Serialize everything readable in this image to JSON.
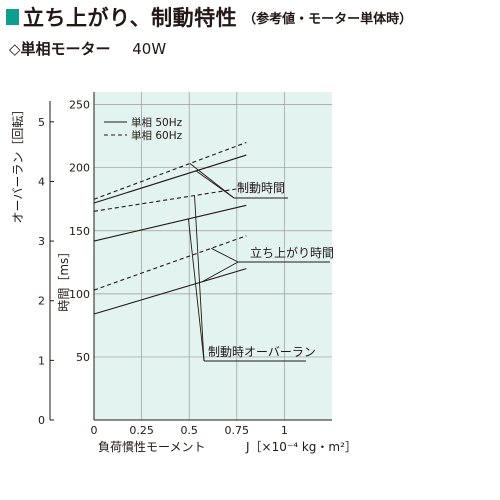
{
  "header": {
    "title": "立ち上がり、制動特性",
    "note": "（参考値・モーター単体時）",
    "subtitle_model": "◇単相モーター",
    "subtitle_power": "40W"
  },
  "colors": {
    "plot_bg": "#e3f3ef",
    "accent": "#0e9e8f",
    "line": "#231815"
  },
  "chart_data": {
    "type": "line",
    "x": [
      0.0,
      0.8
    ],
    "xticks": [
      0,
      0.25,
      0.5,
      0.75,
      1
    ],
    "xtick_labels": [
      "0",
      "0.25",
      "0.5",
      "0.75",
      "1"
    ],
    "xlim": [
      0,
      1.25
    ],
    "xlabel_left": "負荷慣性モーメント",
    "xlabel_right": "J［×10⁻⁴ kg・m²］",
    "y_ms_ticks": [
      50,
      100,
      150,
      200,
      250
    ],
    "y_ms_label": "時間［ms］",
    "ylim_ms": [
      0,
      260
    ],
    "y_rev_ticks": [
      0,
      1,
      2,
      3,
      4,
      5
    ],
    "y_rev_label": "オーバーラン［回転］",
    "ylim_rev": [
      0,
      5.5
    ],
    "grid": true,
    "legend_position": "top-left",
    "legend": [
      {
        "label": "単相 50Hz",
        "style": "solid"
      },
      {
        "label": "単相 60Hz",
        "style": "dashed"
      }
    ],
    "series": [
      {
        "name": "単相 50Hz",
        "group": "制動時間",
        "axis": "ms",
        "values": [
          172,
          210
        ]
      },
      {
        "name": "単相 60Hz",
        "group": "制動時間",
        "axis": "ms",
        "values": [
          175,
          220
        ]
      },
      {
        "name": "単相 50Hz",
        "group": "立ち上がり時間",
        "axis": "ms",
        "values": [
          84,
          120
        ]
      },
      {
        "name": "単相 60Hz",
        "group": "立ち上がり時間",
        "axis": "ms",
        "values": [
          103,
          146
        ]
      },
      {
        "name": "単相 50Hz",
        "group": "制動時オーバーラン",
        "axis": "rev",
        "values": [
          3.0,
          3.6
        ]
      },
      {
        "name": "単相 60Hz",
        "group": "制動時オーバーラン",
        "axis": "rev",
        "values": [
          3.5,
          3.9
        ]
      }
    ],
    "annotations": [
      "制動時間",
      "立ち上がり時間",
      "制動時オーバーラン"
    ]
  }
}
